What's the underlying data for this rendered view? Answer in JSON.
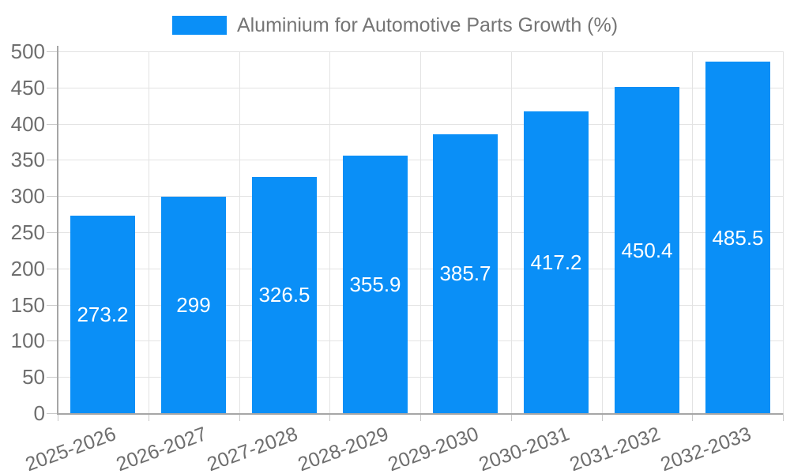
{
  "chart_data": {
    "type": "bar",
    "title": "Aluminium for Automotive Parts Growth (%)",
    "categories": [
      "2025-2026",
      "2026-2027",
      "2027-2028",
      "2028-2029",
      "2029-2030",
      "2030-2031",
      "2031-2032",
      "2032-2033"
    ],
    "values": [
      273.2,
      299,
      326.5,
      355.9,
      385.7,
      417.2,
      450.4,
      485.5
    ],
    "value_labels": [
      "273.2",
      "299",
      "326.5",
      "355.9",
      "385.7",
      "417.2",
      "450.4",
      "485.5"
    ],
    "xlabel": "",
    "ylabel": "",
    "ylim": [
      0,
      500
    ],
    "ytick_step": 50,
    "ytick_labels": [
      "0",
      "50",
      "100",
      "150",
      "200",
      "250",
      "300",
      "350",
      "400",
      "450",
      "500"
    ],
    "grid": true,
    "legend": {
      "position": "top",
      "label": "Aluminium for Automotive Parts Growth (%)"
    },
    "colors": {
      "bar": "#0a8ff7",
      "value_label_text": "#ffffff",
      "axis_text": "#6e6e6e",
      "legend_text": "#757575",
      "gridline": "#e3e3e3",
      "tick": "#c9c9c9",
      "axis_line": "#a6a6a6",
      "background": "#ffffff"
    }
  }
}
